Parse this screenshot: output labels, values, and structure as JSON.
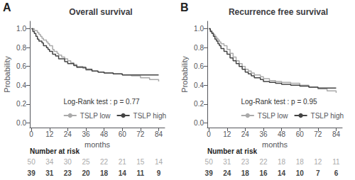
{
  "chart_data": [
    {
      "type": "step",
      "label": "A",
      "title": "Overall survival",
      "annotation": "Log-Rank test : p = 0.77",
      "xlabel": "months",
      "ylabel": "Probability",
      "xlim": [
        -1,
        88
      ],
      "ylim": [
        -0.05,
        1.08
      ],
      "xticks": [
        0,
        12,
        24,
        36,
        48,
        60,
        72,
        84
      ],
      "yticks": [
        {
          "value": 0.0,
          "label": "0.0"
        },
        0.2,
        0.4,
        0.6,
        0.8,
        {
          "value": 1.0,
          "label": "1.0"
        }
      ],
      "grid": false,
      "legend": "lower left",
      "at_risk_title": "Number at risk",
      "at_risk_x": [
        0,
        12,
        24,
        36,
        48,
        60,
        72,
        84
      ],
      "series": [
        {
          "name": "TSLP low",
          "color": "#aaaaaa",
          "x": [
            0,
            2,
            4,
            5,
            6,
            7,
            8,
            10,
            11,
            12,
            14,
            15,
            17,
            18,
            20,
            22,
            24,
            26,
            28,
            30,
            34,
            36,
            40,
            44,
            48,
            54,
            60,
            66,
            72,
            78,
            84
          ],
          "values": [
            1.0,
            0.98,
            0.96,
            0.94,
            0.92,
            0.9,
            0.88,
            0.86,
            0.84,
            0.82,
            0.78,
            0.76,
            0.74,
            0.72,
            0.7,
            0.68,
            0.66,
            0.64,
            0.62,
            0.6,
            0.58,
            0.56,
            0.55,
            0.54,
            0.53,
            0.52,
            0.51,
            0.5,
            0.48,
            0.46,
            0.44
          ],
          "at_risk": [
            50,
            34,
            30,
            25,
            22,
            21,
            15,
            14
          ]
        },
        {
          "name": "TSLP high",
          "color": "#444444",
          "x": [
            0,
            1,
            2,
            3,
            4,
            5,
            7,
            8,
            10,
            11,
            12,
            14,
            16,
            18,
            22,
            24,
            28,
            30,
            36,
            40,
            44,
            48,
            54,
            60,
            66,
            72,
            78,
            84
          ],
          "values": [
            1.0,
            0.97,
            0.95,
            0.92,
            0.89,
            0.87,
            0.85,
            0.82,
            0.8,
            0.78,
            0.76,
            0.73,
            0.71,
            0.68,
            0.65,
            0.63,
            0.61,
            0.59,
            0.57,
            0.55,
            0.54,
            0.53,
            0.52,
            0.51,
            0.51,
            0.51,
            0.51,
            0.51
          ],
          "at_risk": [
            39,
            31,
            23,
            20,
            18,
            14,
            11,
            9
          ]
        }
      ]
    },
    {
      "type": "step",
      "label": "B",
      "title": "Recurrence free survival",
      "annotation": "Log-Rank test : p = 0.95",
      "xlabel": "months",
      "ylabel": "Probability",
      "xlim": [
        -1,
        88
      ],
      "ylim": [
        -0.05,
        1.08
      ],
      "xticks": [
        0,
        12,
        24,
        36,
        48,
        60,
        72,
        84
      ],
      "yticks": [
        {
          "value": 0.0,
          "label": "0.0"
        },
        0.2,
        0.4,
        0.6,
        0.8,
        {
          "value": 1.0,
          "label": "1.0"
        }
      ],
      "grid": false,
      "legend": "lower left",
      "at_risk_title": "Number at risk",
      "at_risk_x": [
        0,
        12,
        24,
        36,
        48,
        60,
        72,
        84
      ],
      "series": [
        {
          "name": "TSLP low",
          "color": "#aaaaaa",
          "x": [
            0,
            1,
            2,
            3,
            4,
            5,
            6,
            7,
            8,
            10,
            12,
            14,
            16,
            18,
            20,
            22,
            24,
            26,
            28,
            30,
            34,
            36,
            40,
            44,
            48,
            54,
            60,
            66,
            72,
            78,
            84
          ],
          "values": [
            1.0,
            0.98,
            0.96,
            0.94,
            0.92,
            0.9,
            0.88,
            0.86,
            0.84,
            0.82,
            0.78,
            0.74,
            0.7,
            0.66,
            0.63,
            0.6,
            0.57,
            0.55,
            0.53,
            0.51,
            0.49,
            0.47,
            0.45,
            0.44,
            0.43,
            0.42,
            0.4,
            0.38,
            0.36,
            0.34,
            0.32
          ],
          "at_risk": [
            50,
            31,
            23,
            22,
            18,
            18,
            12,
            11
          ]
        },
        {
          "name": "TSLP high",
          "color": "#444444",
          "x": [
            0,
            1,
            2,
            3,
            4,
            5,
            6,
            7,
            8,
            10,
            12,
            14,
            16,
            18,
            20,
            22,
            24,
            26,
            28,
            30,
            34,
            36,
            40,
            44,
            48,
            54,
            60,
            66,
            72,
            78,
            84
          ],
          "values": [
            1.0,
            0.97,
            0.95,
            0.92,
            0.89,
            0.87,
            0.84,
            0.82,
            0.79,
            0.76,
            0.73,
            0.69,
            0.66,
            0.63,
            0.6,
            0.57,
            0.54,
            0.52,
            0.5,
            0.48,
            0.46,
            0.44,
            0.43,
            0.42,
            0.41,
            0.4,
            0.39,
            0.38,
            0.37,
            0.37,
            0.37
          ],
          "at_risk": [
            39,
            24,
            18,
            16,
            14,
            10,
            7,
            6
          ]
        }
      ]
    }
  ]
}
